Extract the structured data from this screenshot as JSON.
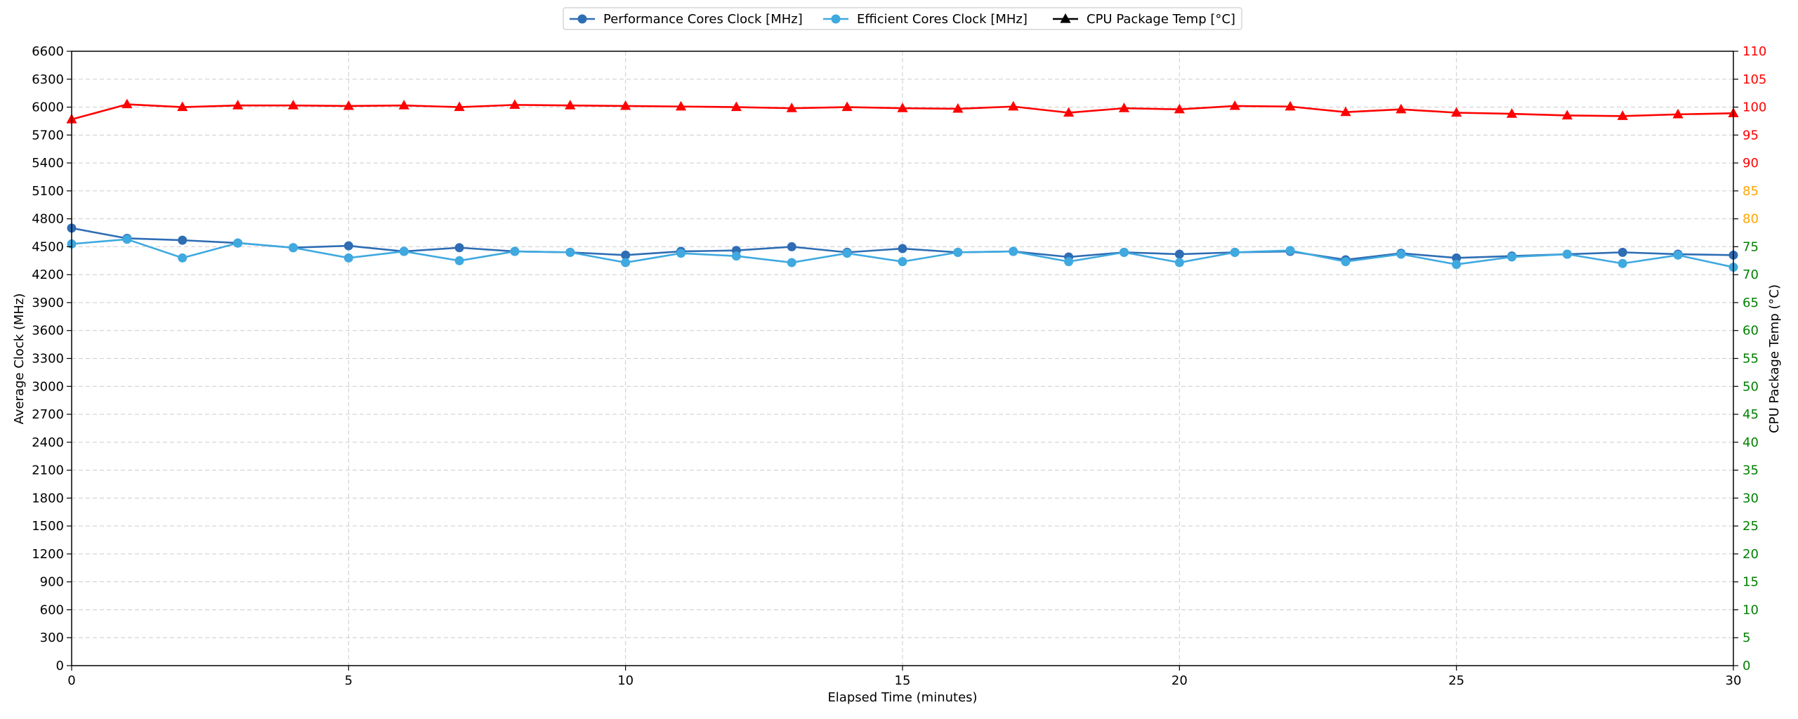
{
  "chart_data": {
    "type": "line",
    "xlabel": "Elapsed Time (minutes)",
    "ylabel": "Average Clock (MHz)",
    "y2label": "CPU Package Temp (°C)",
    "xlim": [
      0,
      30
    ],
    "ylim": [
      0,
      6600
    ],
    "y2lim": [
      0,
      110
    ],
    "grid": true,
    "legend_position": "top-center",
    "x_ticks": [
      0,
      5,
      10,
      15,
      20,
      25,
      30
    ],
    "y_ticks": [
      0,
      300,
      600,
      900,
      1200,
      1500,
      1800,
      2100,
      2400,
      2700,
      3000,
      3300,
      3600,
      3900,
      4200,
      4500,
      4800,
      5100,
      5400,
      5700,
      6000,
      6300,
      6600
    ],
    "y2_ticks": [
      0,
      5,
      10,
      15,
      20,
      25,
      30,
      35,
      40,
      45,
      50,
      55,
      60,
      65,
      70,
      75,
      80,
      85,
      90,
      95,
      100,
      105,
      110
    ],
    "y2_tick_color_rules": [
      {
        "min": 0,
        "max": 75,
        "color": "#008000"
      },
      {
        "min": 80,
        "max": 85,
        "color": "#FFA500"
      },
      {
        "min": 90,
        "max": 110,
        "color": "#FF0000"
      }
    ],
    "x": [
      0,
      1,
      2,
      3,
      4,
      5,
      6,
      7,
      8,
      9,
      10,
      11,
      12,
      13,
      14,
      15,
      16,
      17,
      18,
      19,
      20,
      21,
      22,
      23,
      24,
      25,
      26,
      27,
      28,
      29,
      30
    ],
    "series": [
      {
        "name": "Performance Cores Clock [MHz]",
        "axis": "left",
        "color": "#2E6DB4",
        "marker": "circle",
        "values": [
          4700,
          4590,
          4570,
          4540,
          4490,
          4510,
          4450,
          4490,
          4450,
          4440,
          4410,
          4450,
          4460,
          4500,
          4440,
          4480,
          4440,
          4450,
          4390,
          4440,
          4420,
          4440,
          4450,
          4360,
          4430,
          4380,
          4400,
          4420,
          4440,
          4420,
          4410
        ]
      },
      {
        "name": "Efficient Cores Clock [MHz]",
        "axis": "left",
        "color": "#3FA9E0",
        "marker": "circle",
        "values": [
          4530,
          4580,
          4380,
          4540,
          4490,
          4380,
          4450,
          4350,
          4450,
          4440,
          4330,
          4430,
          4400,
          4330,
          4430,
          4340,
          4440,
          4450,
          4340,
          4440,
          4330,
          4440,
          4460,
          4340,
          4420,
          4310,
          4390,
          4420,
          4320,
          4410,
          4280
        ]
      },
      {
        "name": "CPU Package Temp [°C]",
        "axis": "right",
        "color": "#FF0000",
        "legend_color": "#000000",
        "marker": "triangle",
        "values": [
          97.8,
          100.5,
          100,
          100.3,
          100.3,
          100.2,
          100.3,
          100,
          100.4,
          100.3,
          100.2,
          100.1,
          100,
          99.8,
          100,
          99.8,
          99.7,
          100.1,
          99,
          99.8,
          99.6,
          100.2,
          100.1,
          99.1,
          99.6,
          99,
          98.8,
          98.5,
          98.4,
          98.7,
          98.9
        ]
      }
    ]
  }
}
